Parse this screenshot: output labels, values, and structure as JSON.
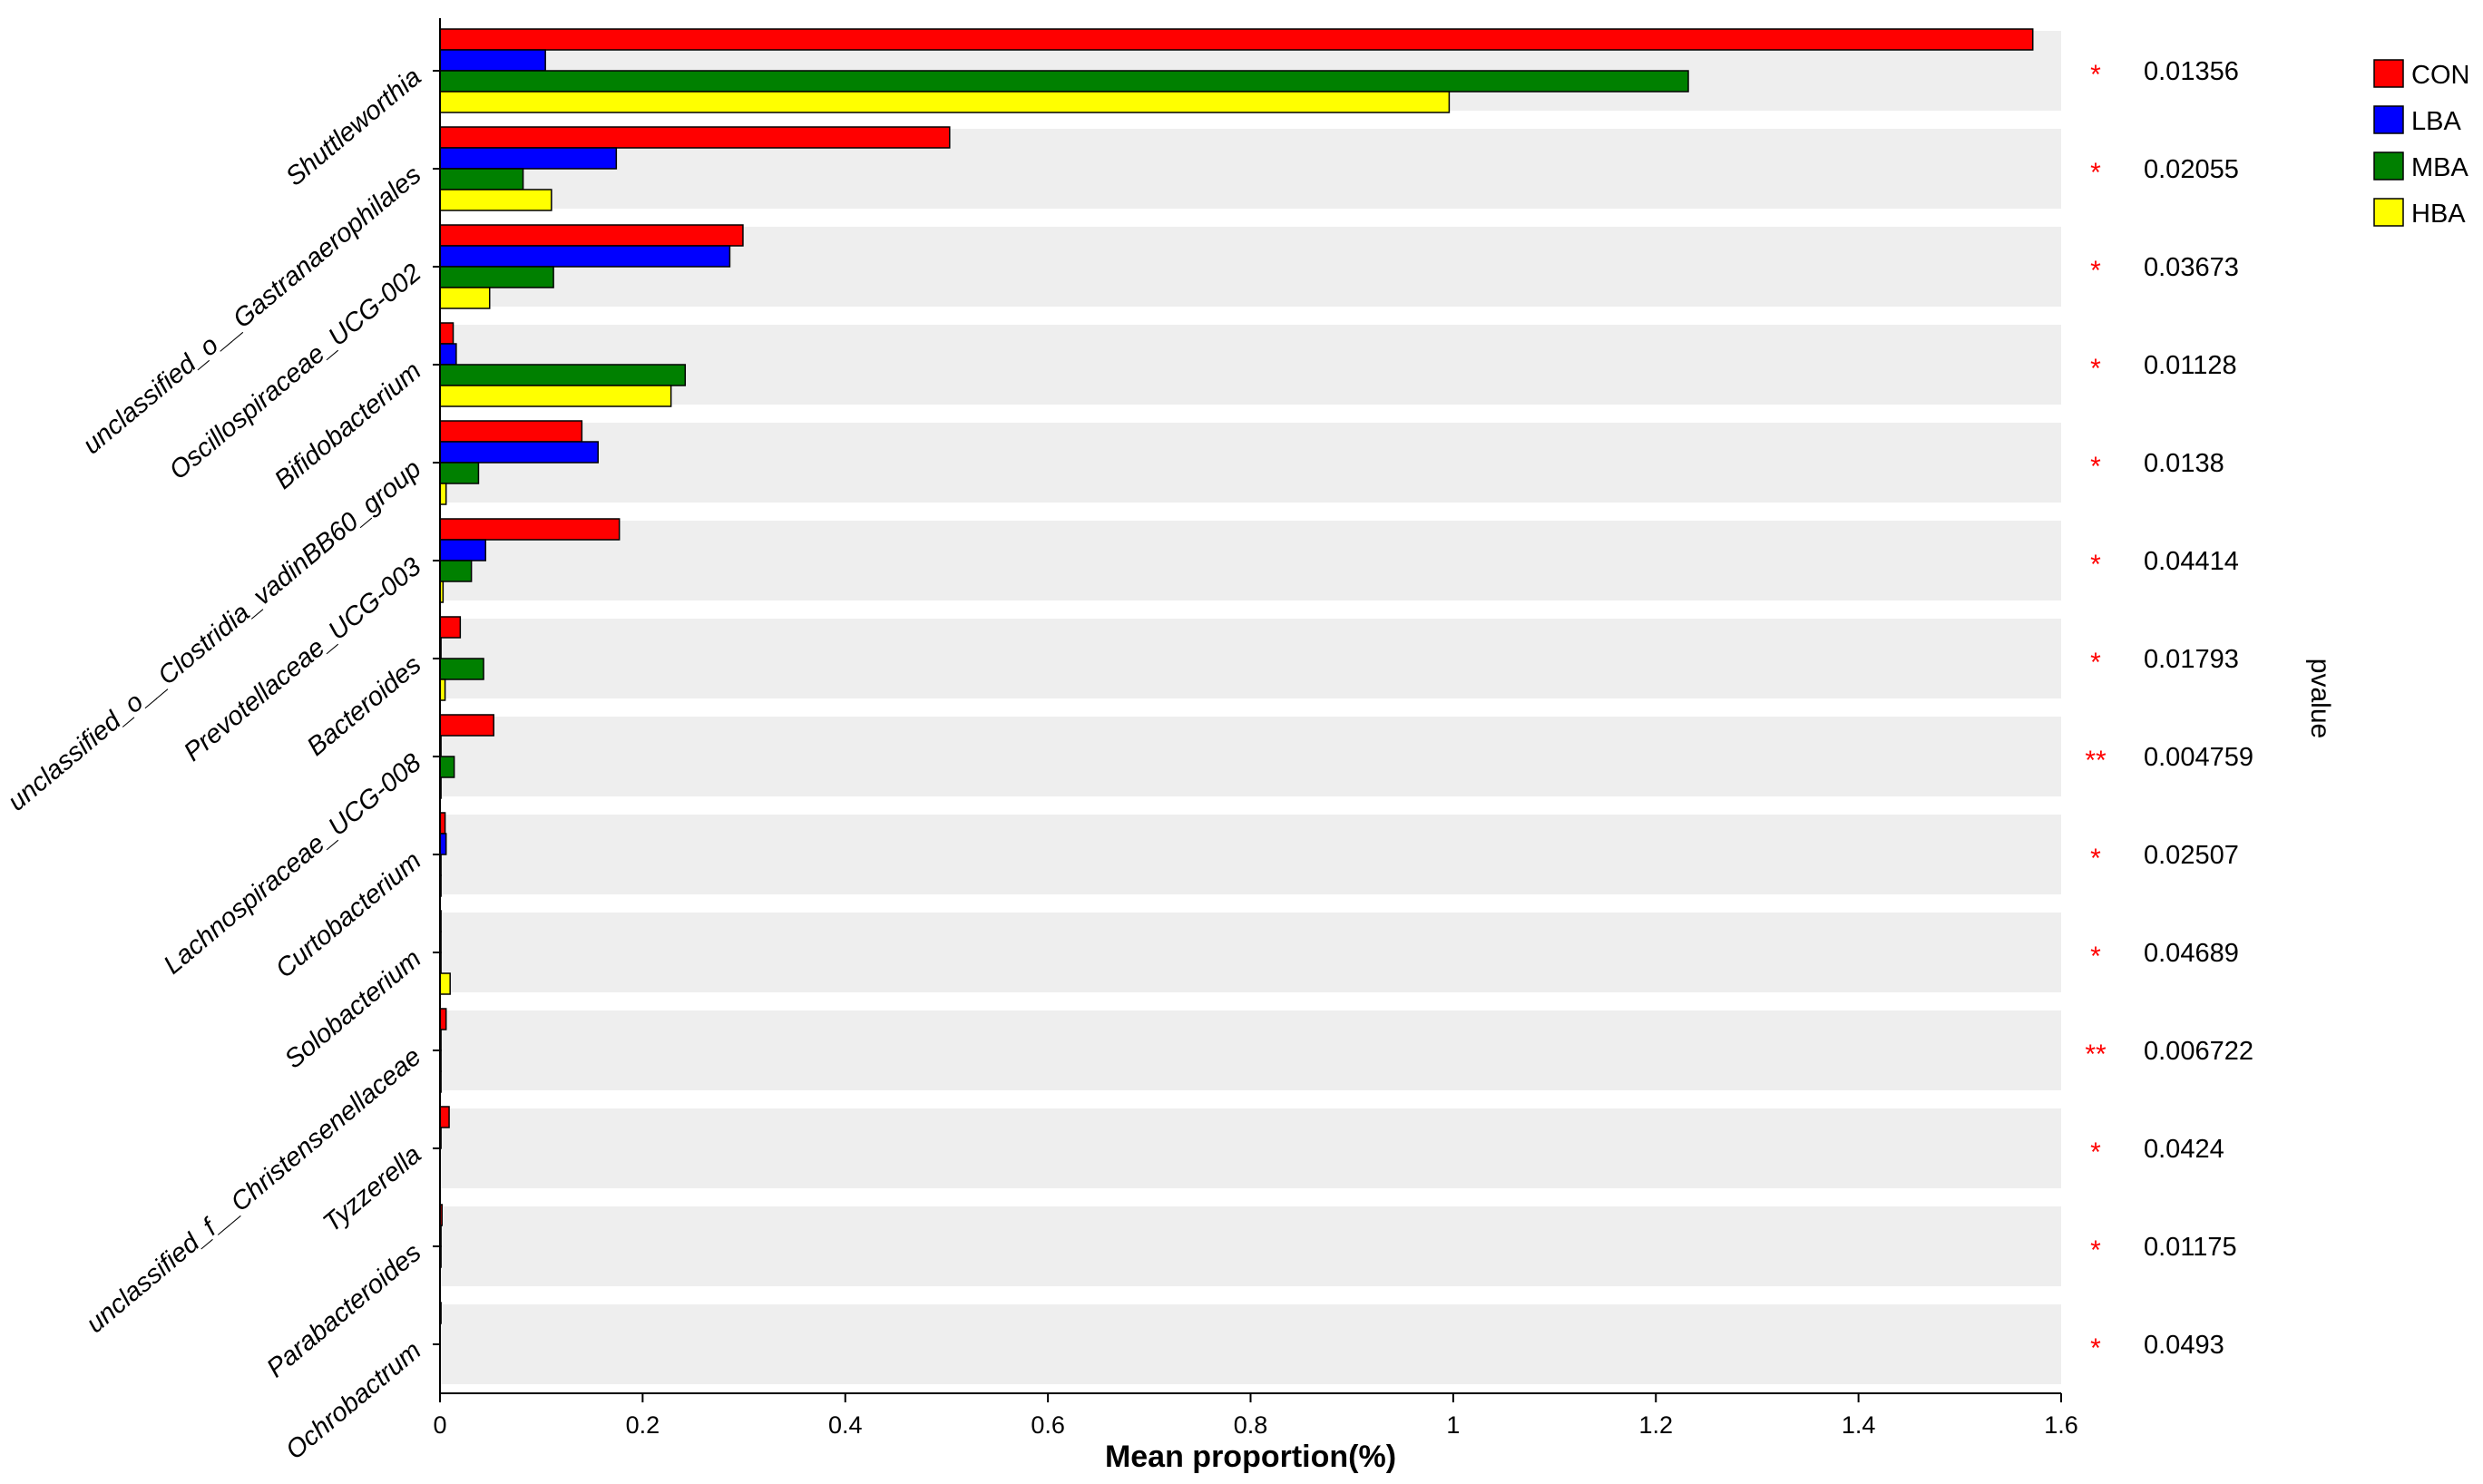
{
  "chart_data": {
    "type": "bar",
    "orientation": "horizontal",
    "xlabel": "Mean proportion(%)",
    "ylabel": "",
    "y2label": "pvalue",
    "xlim": [
      0,
      1.6
    ],
    "xticks": [
      "0",
      "0.2",
      "0.4",
      "0.6",
      "0.8",
      "1",
      "1.2",
      "1.4",
      "1.6"
    ],
    "categories": [
      "Shuttleworthia",
      "unclassified_o__Gastranaerophilales",
      "Oscillospiraceae_UCG-002",
      "Bifidobacterium",
      "unclassified_o__Clostridia_vadinBB60_group",
      "Prevotellaceae_UCG-003",
      "Bacteroides",
      "Lachnospiraceae_UCG-008",
      "Curtobacterium",
      "Solobacterium",
      "unclassified_f__Christensenellaceae",
      "Tyzzerella",
      "Parabacteroides",
      "Ochrobactrum"
    ],
    "series": [
      {
        "name": "CON",
        "color": "#ff0000",
        "values": [
          1.572,
          0.503,
          0.299,
          0.013,
          0.14,
          0.177,
          0.02,
          0.053,
          0.005,
          0.001,
          0.006,
          0.009,
          0.002,
          0.001
        ]
      },
      {
        "name": "LBA",
        "color": "#0000ff",
        "values": [
          0.104,
          0.174,
          0.286,
          0.016,
          0.156,
          0.045,
          0.001,
          0.001,
          0.006,
          0.001,
          0.001,
          0.001,
          0.001,
          0.0
        ]
      },
      {
        "name": "MBA",
        "color": "#008000",
        "values": [
          1.232,
          0.082,
          0.112,
          0.242,
          0.038,
          0.031,
          0.043,
          0.014,
          0.001,
          0.001,
          0.001,
          0.0,
          0.001,
          0.0
        ]
      },
      {
        "name": "HBA",
        "color": "#ffff00",
        "values": [
          0.996,
          0.11,
          0.049,
          0.228,
          0.006,
          0.003,
          0.005,
          0.001,
          0.001,
          0.01,
          0.001,
          0.0,
          0.0,
          0.0
        ]
      }
    ],
    "pvalues": [
      "0.01356",
      "0.02055",
      "0.03673",
      "0.01128",
      "0.0138",
      "0.04414",
      "0.01793",
      "0.004759",
      "0.02507",
      "0.04689",
      "0.006722",
      "0.0424",
      "0.01175",
      "0.0493"
    ],
    "significance": [
      "*",
      "*",
      "*",
      "*",
      "*",
      "*",
      "*",
      "**",
      "*",
      "*",
      "**",
      "*",
      "*",
      "*"
    ],
    "significance_color": "#ff0000",
    "band_color": "#eeeeee",
    "grid": false,
    "legend_position": "top-right"
  }
}
